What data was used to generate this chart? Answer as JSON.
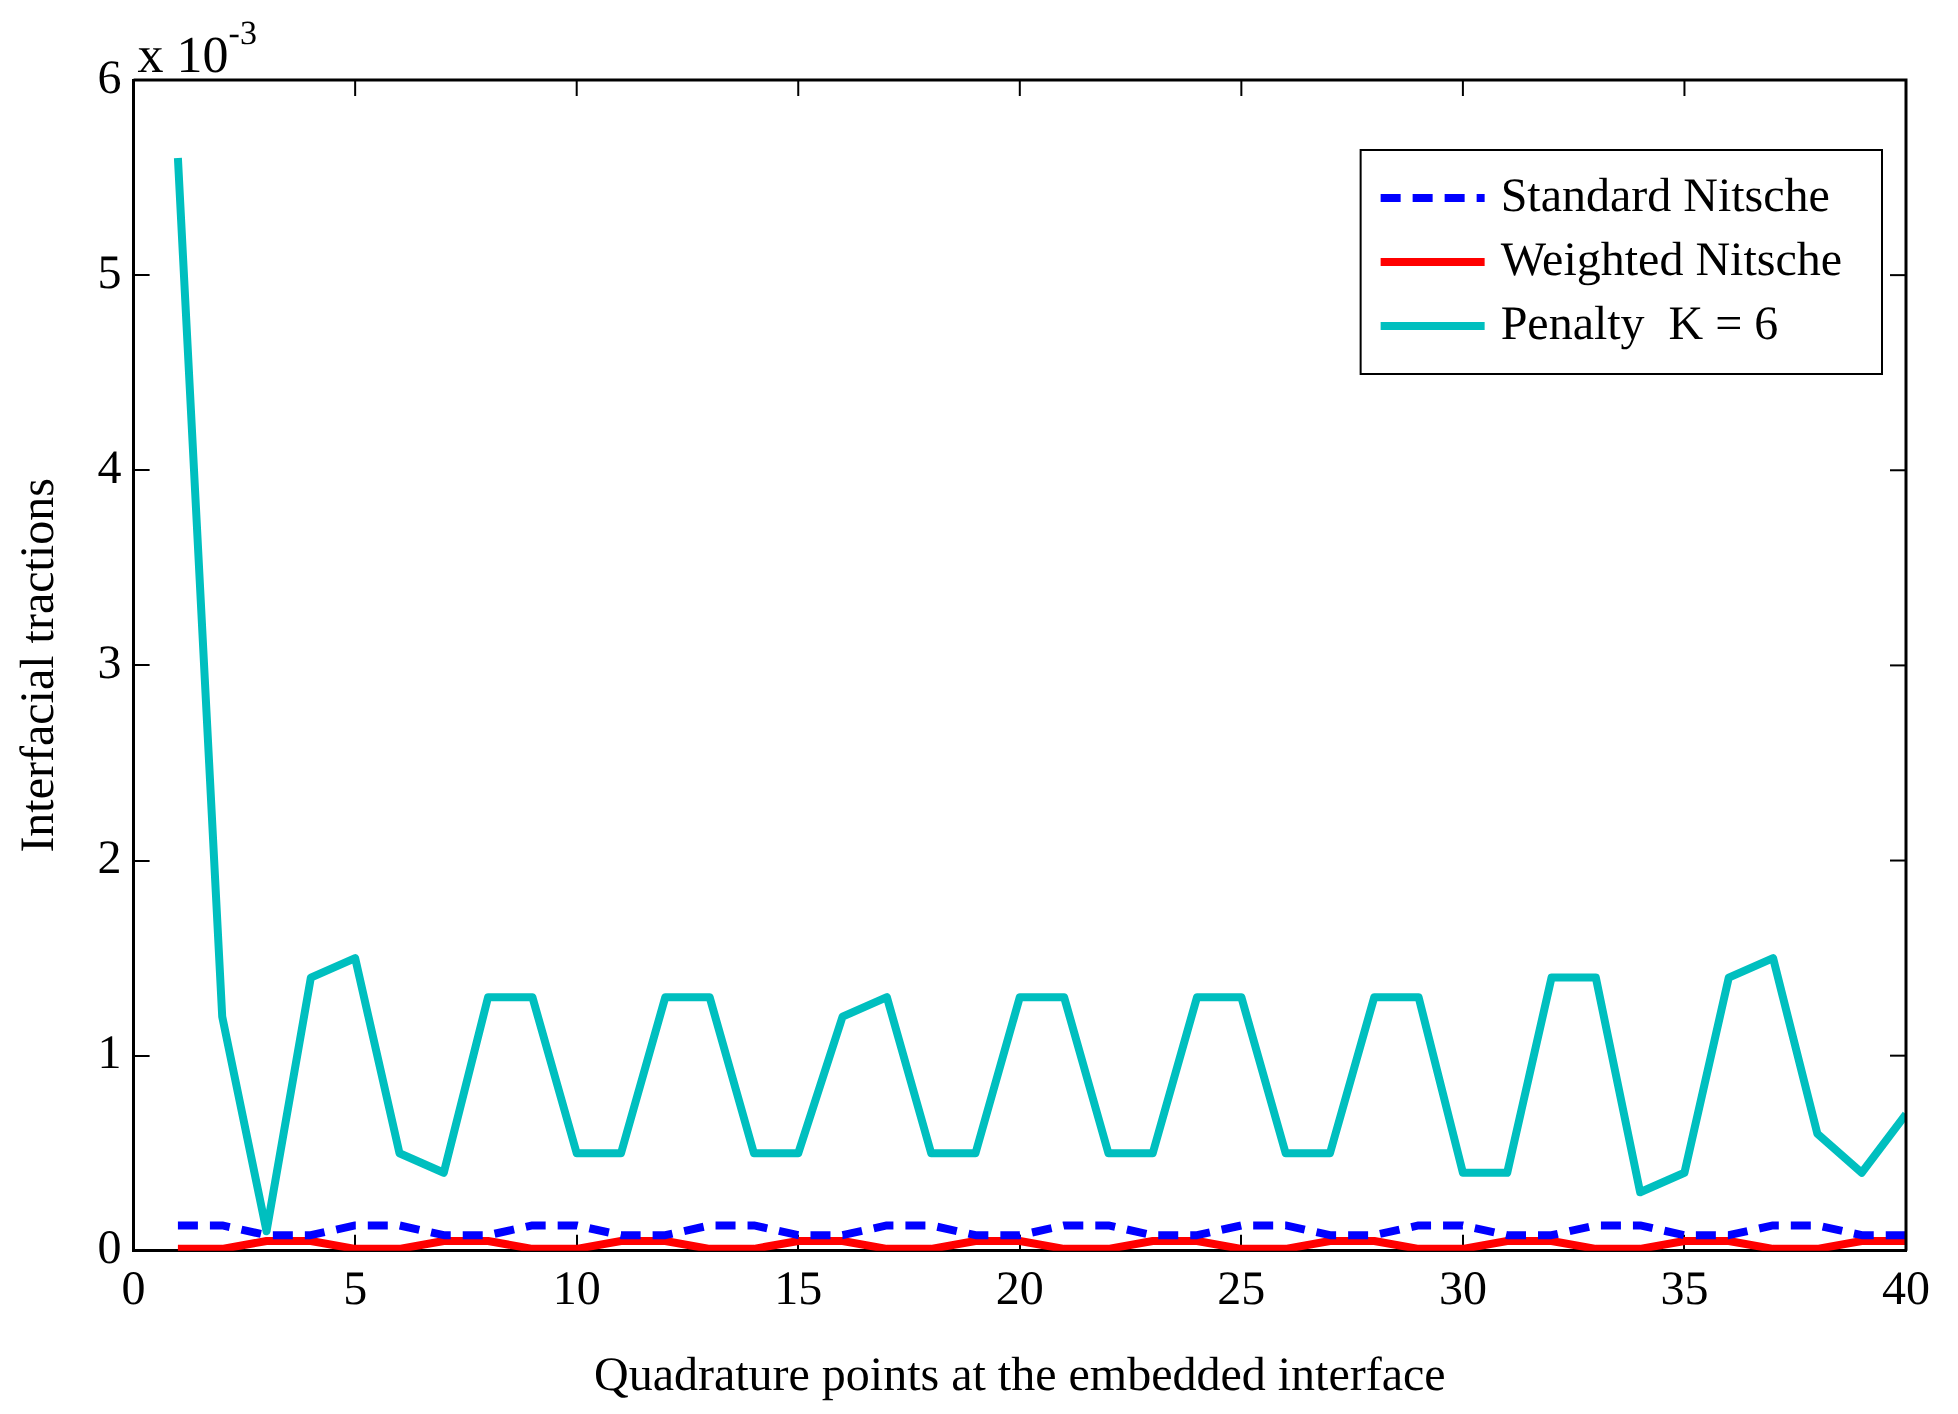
{
  "chart_data": {
    "type": "line",
    "xlabel": "Quadrature points at the embedded interface",
    "ylabel": "Interfacial tractions",
    "x": [
      1,
      2,
      3,
      4,
      5,
      6,
      7,
      8,
      9,
      10,
      11,
      12,
      13,
      14,
      15,
      16,
      17,
      18,
      19,
      20,
      21,
      22,
      23,
      24,
      25,
      26,
      27,
      28,
      29,
      30,
      31,
      32,
      33,
      34,
      35,
      36,
      37,
      38,
      39,
      40
    ],
    "series": [
      {
        "name": "Standard Nitsche",
        "color": "#0000ff",
        "line_style": "dashed",
        "values": [
          0.13,
          0.13,
          0.08,
          0.08,
          0.13,
          0.13,
          0.08,
          0.08,
          0.13,
          0.13,
          0.08,
          0.08,
          0.13,
          0.13,
          0.08,
          0.08,
          0.13,
          0.13,
          0.08,
          0.08,
          0.13,
          0.13,
          0.08,
          0.08,
          0.13,
          0.13,
          0.08,
          0.08,
          0.13,
          0.13,
          0.08,
          0.08,
          0.13,
          0.13,
          0.08,
          0.08,
          0.13,
          0.13,
          0.08,
          0.08
        ]
      },
      {
        "name": "Weighted Nitsche",
        "color": "#ff0000",
        "line_style": "solid",
        "values": [
          0.01,
          0.01,
          0.05,
          0.05,
          0.01,
          0.01,
          0.05,
          0.05,
          0.01,
          0.01,
          0.05,
          0.05,
          0.01,
          0.01,
          0.05,
          0.05,
          0.01,
          0.01,
          0.05,
          0.05,
          0.01,
          0.01,
          0.05,
          0.05,
          0.01,
          0.01,
          0.05,
          0.05,
          0.01,
          0.01,
          0.05,
          0.05,
          0.01,
          0.01,
          0.05,
          0.05,
          0.01,
          0.01,
          0.05,
          0.05
        ]
      },
      {
        "name": "Penalty  K = 6",
        "color": "#00bfbf",
        "line_style": "solid",
        "values": [
          5.6,
          1.2,
          0.1,
          1.4,
          1.5,
          0.5,
          0.4,
          1.3,
          1.3,
          0.5,
          0.5,
          1.3,
          1.3,
          0.5,
          0.5,
          1.2,
          1.3,
          0.5,
          0.5,
          1.3,
          1.3,
          0.5,
          0.5,
          1.3,
          1.3,
          0.5,
          0.5,
          1.3,
          1.3,
          0.4,
          0.4,
          1.4,
          1.4,
          0.3,
          0.4,
          1.4,
          1.5,
          0.6,
          0.4,
          0.7
        ]
      }
    ],
    "xlim": [
      0,
      40
    ],
    "xticks": [
      0,
      5,
      10,
      15,
      20,
      25,
      30,
      35,
      40
    ],
    "ylim": [
      0,
      6
    ],
    "yticks": [
      0,
      1,
      2,
      3,
      4,
      5,
      6
    ],
    "annotations": [
      "x 10$^{-3}$"
    ],
    "legend": "top right",
    "grid": false,
    "marker": "none"
  }
}
